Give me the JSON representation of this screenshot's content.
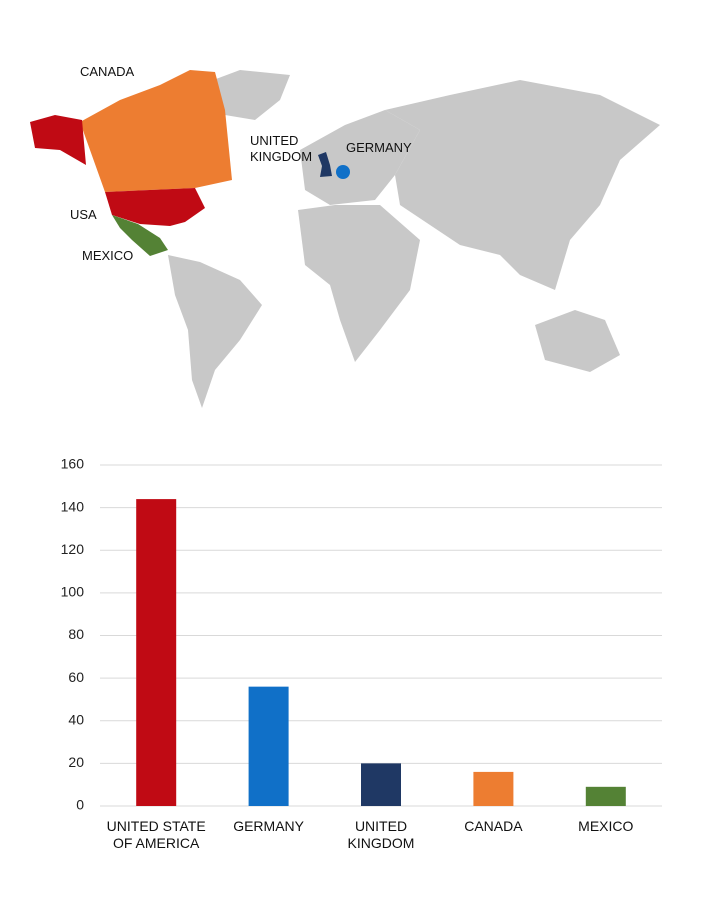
{
  "map": {
    "labels": [
      "CANADA",
      "USA",
      "MEXICO",
      "UNITED KINGDOM",
      "GERMANY"
    ]
  },
  "chart_data": {
    "type": "bar",
    "categories": [
      "UNITED STATE OF AMERICA",
      "GERMANY",
      "UNITED KINGDOM",
      "CANADA",
      "MEXICO"
    ],
    "values": [
      144,
      56,
      20,
      16,
      9
    ],
    "colors": [
      "#c00a14",
      "#1070c8",
      "#1f3864",
      "#ed7d31",
      "#548235"
    ],
    "ylim": [
      0,
      160
    ],
    "yticks": [
      0,
      20,
      40,
      60,
      80,
      100,
      120,
      140,
      160
    ],
    "grid": true
  }
}
